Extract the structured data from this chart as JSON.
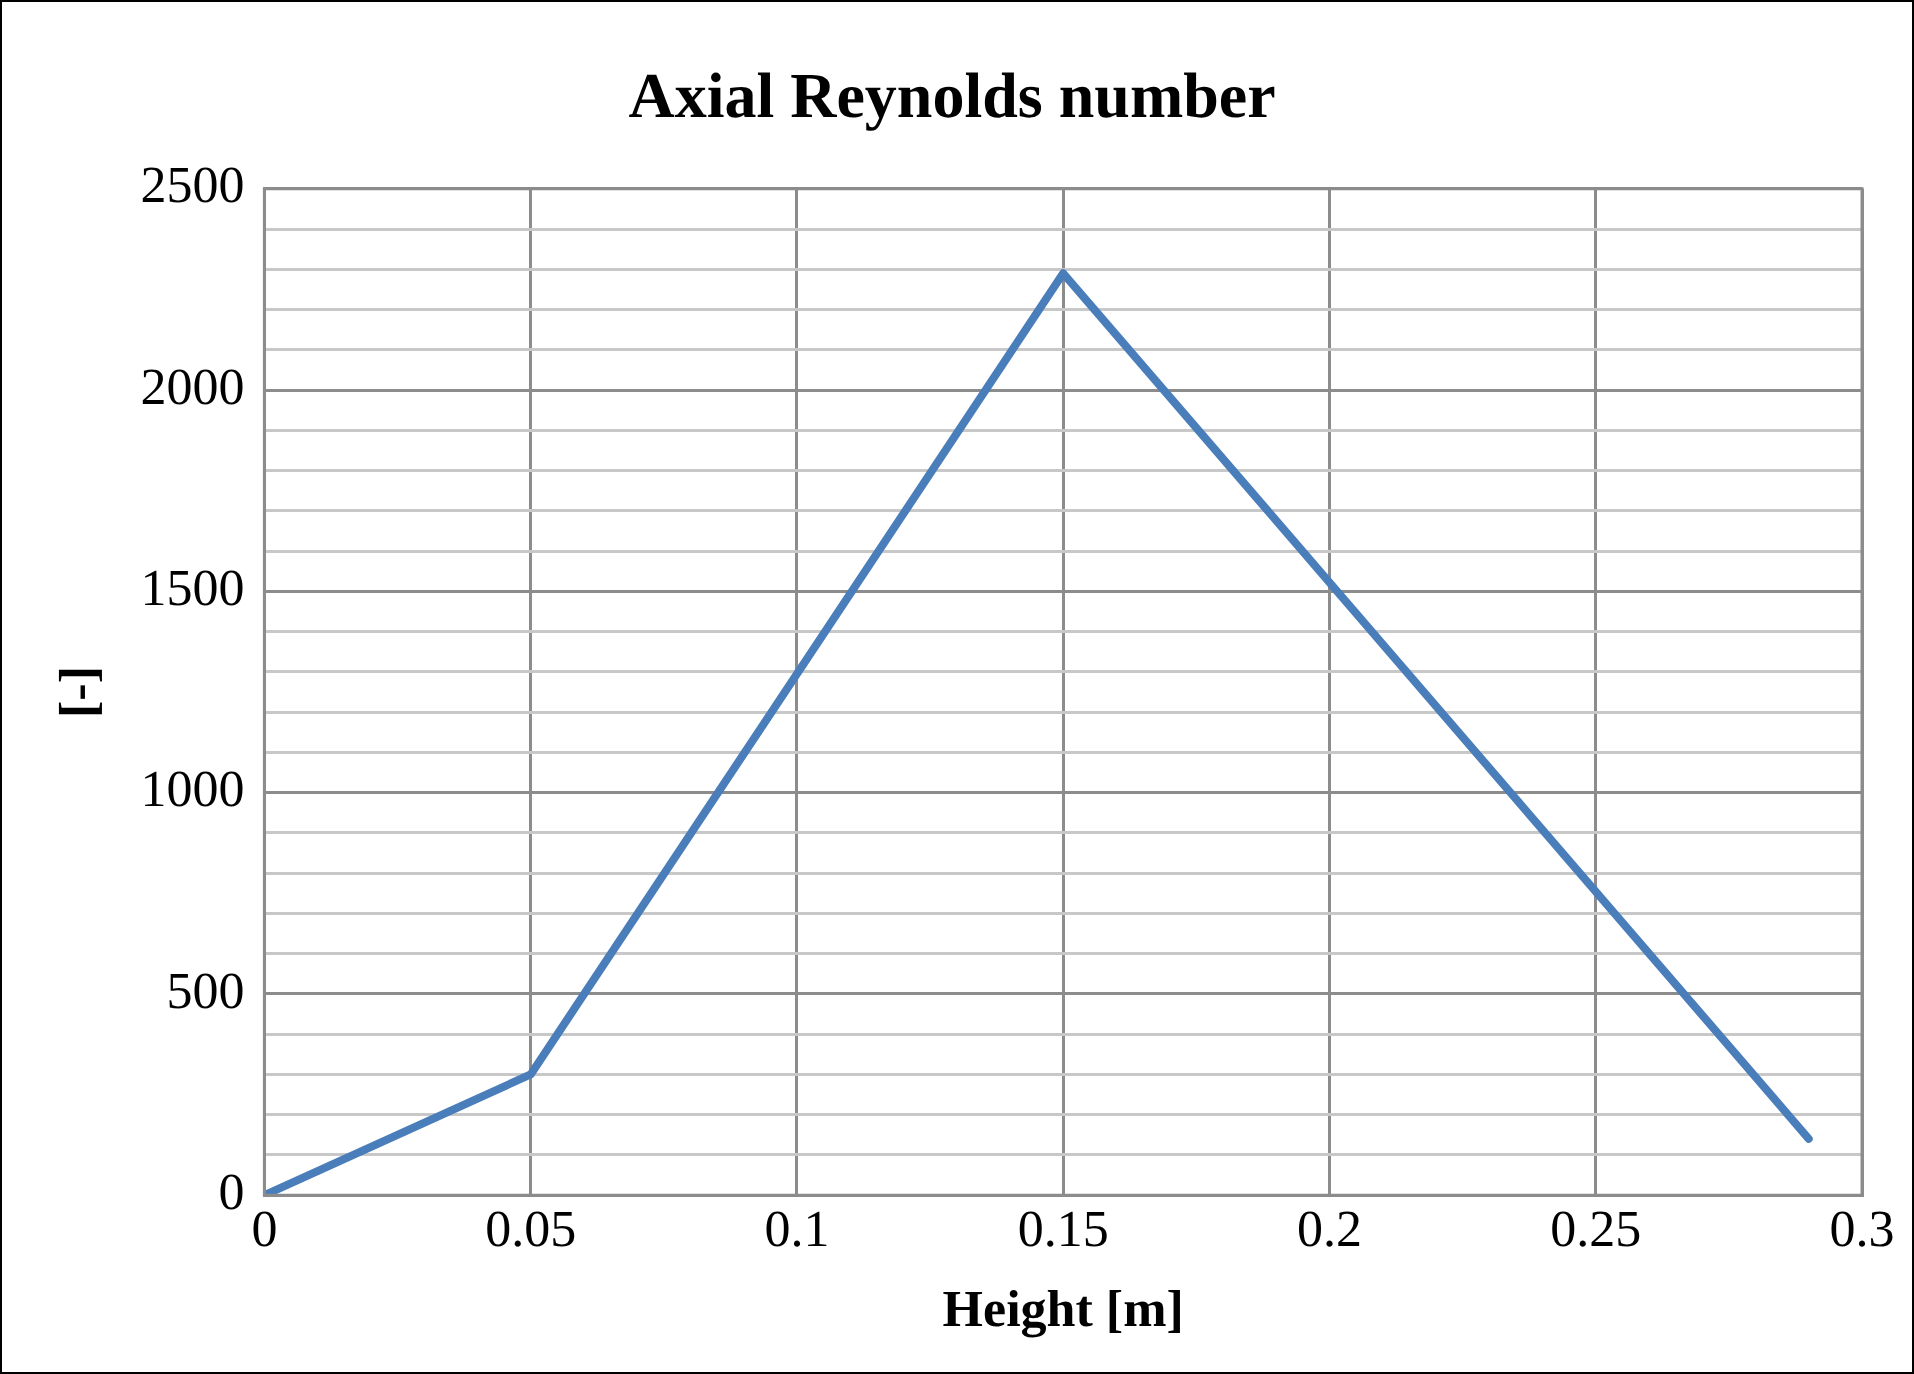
{
  "chart_data": {
    "type": "line",
    "title": "Axial Reynolds number",
    "xlabel": "Height [m]",
    "ylabel": "[-]",
    "x": [
      0,
      0.05,
      0.15,
      0.29
    ],
    "series": [
      {
        "color": "#4a7ebb",
        "values": [
          0,
          300,
          2290,
          140
        ]
      }
    ],
    "xlim": [
      0,
      0.3
    ],
    "xticks": [
      0,
      0.05,
      0.1,
      0.15,
      0.2,
      0.25,
      0.3
    ],
    "ylim": [
      0,
      2500
    ],
    "yticks": [
      0,
      {
        "value": 100,
        "label": null
      },
      {
        "value": 200,
        "label": null
      },
      {
        "value": 300,
        "label": null
      },
      {
        "value": 400,
        "label": null
      },
      500,
      {
        "value": 600,
        "label": null
      },
      {
        "value": 700,
        "label": null
      },
      {
        "value": 800,
        "label": null
      },
      {
        "value": 900,
        "label": null
      },
      1000,
      {
        "value": 1100,
        "label": null
      },
      {
        "value": 1200,
        "label": null
      },
      {
        "value": 1300,
        "label": null
      },
      {
        "value": 1400,
        "label": null
      },
      1500,
      {
        "value": 1600,
        "label": null
      },
      {
        "value": 1700,
        "label": null
      },
      {
        "value": 1800,
        "label": null
      },
      {
        "value": 1900,
        "label": null
      },
      2000,
      {
        "value": 2100,
        "label": null
      },
      {
        "value": 2200,
        "label": null
      },
      {
        "value": 2300,
        "label": null
      },
      {
        "value": 2400,
        "label": null
      },
      2500
    ],
    "grid": true,
    "legend": false,
    "marker": "none",
    "line_style": "solid"
  }
}
